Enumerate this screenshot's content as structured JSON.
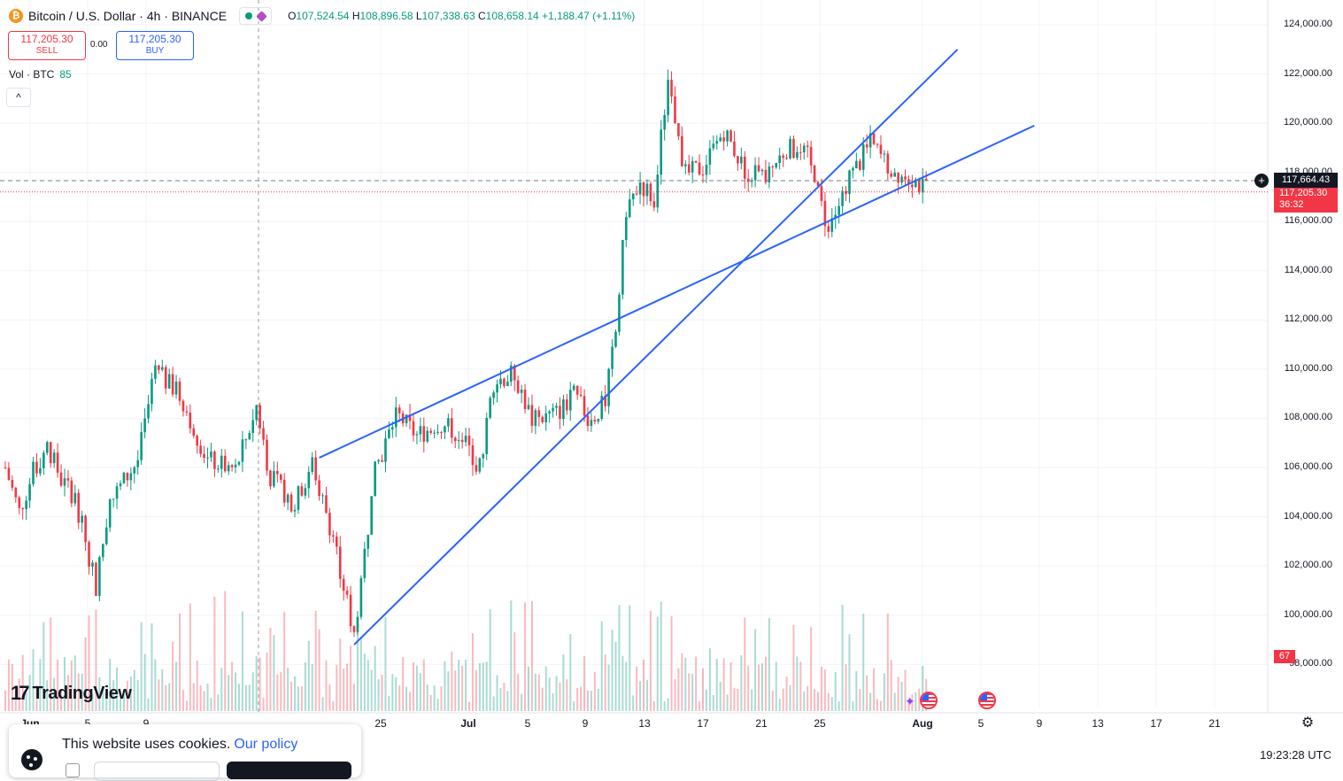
{
  "legend": {
    "symbol": "Bitcoin / U.S. Dollar · 4h · BINANCE",
    "logo_letter": "₿",
    "ohlc": {
      "o_label": "O",
      "o": "107,524.54",
      "h_label": "H",
      "h": "108,896.58",
      "l_label": "L",
      "l": "107,338.63",
      "c_label": "C",
      "c": "108,658.14",
      "change": "+1,188.47 (+1.11%)"
    }
  },
  "trade": {
    "sell_price": "117,205.30",
    "sell_label": "SELL",
    "spread": "0.00",
    "buy_price": "117,205.30",
    "buy_label": "BUY"
  },
  "volume_legend": {
    "label": "Vol · BTC",
    "value": "85"
  },
  "price_axis": {
    "labels": [
      "124,000.00",
      "122,000.00",
      "120,000.00",
      "118,000.00",
      "116,000.00",
      "114,000.00",
      "112,000.00",
      "110,000.00",
      "108,000.00",
      "106,000.00",
      "104,000.00",
      "102,000.00",
      "100,000.00",
      "98,000.00"
    ],
    "current_price": "117,664.43",
    "bid_price": "117,205.30",
    "countdown": "36:32",
    "volume_tag": "67"
  },
  "time_axis": {
    "labels": [
      {
        "text": "Jun",
        "bold": true
      },
      {
        "text": "5",
        "bold": false
      },
      {
        "text": "9",
        "bold": false
      },
      {
        "text": "25",
        "bold": false
      },
      {
        "text": "Jul",
        "bold": true
      },
      {
        "text": "5",
        "bold": false
      },
      {
        "text": "9",
        "bold": false
      },
      {
        "text": "13",
        "bold": false
      },
      {
        "text": "17",
        "bold": false
      },
      {
        "text": "21",
        "bold": false
      },
      {
        "text": "25",
        "bold": false
      },
      {
        "text": "Aug",
        "bold": true
      },
      {
        "text": "5",
        "bold": false
      },
      {
        "text": "9",
        "bold": false
      },
      {
        "text": "13",
        "bold": false
      },
      {
        "text": "17",
        "bold": false
      },
      {
        "text": "21",
        "bold": false
      }
    ],
    "clock": "19:23:28 UTC"
  },
  "branding": {
    "name": "TradingView",
    "mark": "17"
  },
  "cookie": {
    "text": "This website uses cookies.",
    "link": "Our policy"
  },
  "colors": {
    "up": "#089981",
    "down": "#f23645",
    "trendline": "#2962ff",
    "text": "#131722"
  },
  "icons": [
    "bitcoin-logo-icon",
    "market-open-icon",
    "crosshair-plus-icon",
    "settings-icon",
    "us-flag-event-icon",
    "ai-spark-icon",
    "cookie-icon",
    "chevron-up-icon"
  ],
  "chart_data": {
    "type": "candlestick",
    "interval": "4h",
    "ylim": [
      97000,
      125000
    ],
    "anchors": [
      {
        "t": 0,
        "p": 106000
      },
      {
        "t": 4,
        "p": 104200
      },
      {
        "t": 8,
        "p": 105800
      },
      {
        "t": 12,
        "p": 106900
      },
      {
        "t": 16,
        "p": 105500
      },
      {
        "t": 20,
        "p": 104800
      },
      {
        "t": 26,
        "p": 101200
      },
      {
        "t": 30,
        "p": 104600
      },
      {
        "t": 38,
        "p": 106300
      },
      {
        "t": 43,
        "p": 109900
      },
      {
        "t": 50,
        "p": 109000
      },
      {
        "t": 58,
        "p": 106300
      },
      {
        "t": 66,
        "p": 105900
      },
      {
        "t": 72,
        "p": 108500
      },
      {
        "t": 76,
        "p": 105600
      },
      {
        "t": 83,
        "p": 104500
      },
      {
        "t": 88,
        "p": 106200
      },
      {
        "t": 94,
        "p": 103200
      },
      {
        "t": 98,
        "p": 100500
      },
      {
        "t": 100,
        "p": 99200
      },
      {
        "t": 106,
        "p": 105800
      },
      {
        "t": 112,
        "p": 108200
      },
      {
        "t": 118,
        "p": 107300
      },
      {
        "t": 124,
        "p": 107800
      },
      {
        "t": 130,
        "p": 107400
      },
      {
        "t": 136,
        "p": 106000
      },
      {
        "t": 140,
        "p": 109500
      },
      {
        "t": 146,
        "p": 109800
      },
      {
        "t": 151,
        "p": 107900
      },
      {
        "t": 158,
        "p": 108200
      },
      {
        "t": 163,
        "p": 108900
      },
      {
        "t": 168,
        "p": 107900
      },
      {
        "t": 172,
        "p": 108700
      },
      {
        "t": 175,
        "p": 111500
      },
      {
        "t": 178,
        "p": 116500
      },
      {
        "t": 182,
        "p": 117600
      },
      {
        "t": 186,
        "p": 116900
      },
      {
        "t": 190,
        "p": 121800
      },
      {
        "t": 195,
        "p": 117900
      },
      {
        "t": 200,
        "p": 118200
      },
      {
        "t": 206,
        "p": 119700
      },
      {
        "t": 212,
        "p": 118100
      },
      {
        "t": 218,
        "p": 117800
      },
      {
        "t": 224,
        "p": 119000
      },
      {
        "t": 230,
        "p": 118600
      },
      {
        "t": 236,
        "p": 115600
      },
      {
        "t": 242,
        "p": 117700
      },
      {
        "t": 248,
        "p": 119200
      },
      {
        "t": 254,
        "p": 118100
      },
      {
        "t": 260,
        "p": 117800
      },
      {
        "t": 264,
        "p": 117200
      }
    ],
    "trendlines": [
      {
        "from": {
          "t": 90,
          "p": 106400
        },
        "to": {
          "t": 295,
          "p": 119900
        }
      },
      {
        "from": {
          "t": 100,
          "p": 98800
        },
        "to": {
          "t": 273,
          "p": 123000
        }
      }
    ],
    "last_price": 117664.43
  }
}
